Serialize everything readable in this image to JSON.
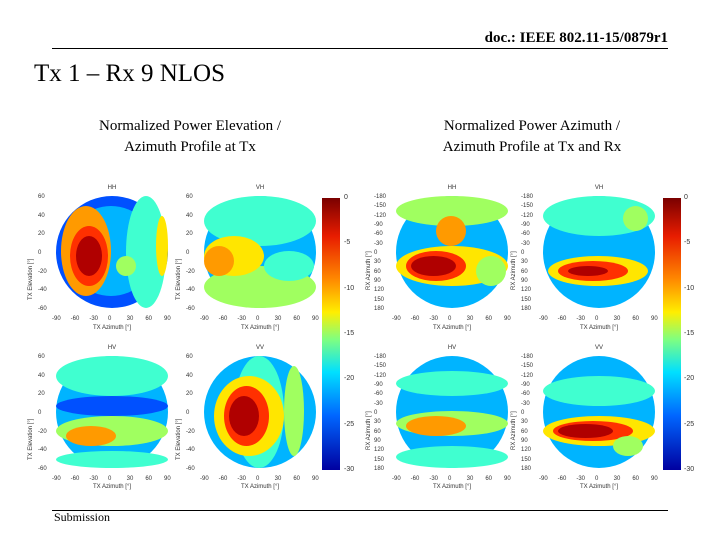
{
  "header": {
    "doc_id": "doc.: IEEE 802.11-15/0879r1"
  },
  "slide_title": "Tx 1 – Rx 9 NLOS",
  "left_subtitle_line1": "Normalized Power Elevation /",
  "left_subtitle_line2": "Azimuth Profile at Tx",
  "right_subtitle_line1": "Normalized Power Azimuth /",
  "right_subtitle_line2": "Azimuth Profile at Tx and Rx",
  "footer": "Submission",
  "left_panels": [
    {
      "title": "HH",
      "xlabel": "TX Azimuth [°]",
      "ylabel": "TX Elevation [°]"
    },
    {
      "title": "VH",
      "xlabel": "TX Azimuth [°]",
      "ylabel": "TX Elevation [°]"
    },
    {
      "title": "HV",
      "xlabel": "TX Azimuth [°]",
      "ylabel": "TX Elevation [°]"
    },
    {
      "title": "VV",
      "xlabel": "TX Azimuth [°]",
      "ylabel": "TX Elevation [°]"
    }
  ],
  "right_panels": [
    {
      "title": "HH",
      "xlabel": "TX Azimuth [°]",
      "ylabel": "RX Azimuth [°]"
    },
    {
      "title": "VH",
      "xlabel": "TX Azimuth [°]",
      "ylabel": "RX Azimuth [°]"
    },
    {
      "title": "HV",
      "xlabel": "TX Azimuth [°]",
      "ylabel": "RX Azimuth [°]"
    },
    {
      "title": "VV",
      "xlabel": "TX Azimuth [°]",
      "ylabel": "RX Azimuth [°]"
    }
  ],
  "colorbar_ticks": [
    "0",
    "-5",
    "-10",
    "-15",
    "-20",
    "-25",
    "-30"
  ],
  "left_yticks": [
    "60",
    "40",
    "20",
    "0",
    "-20",
    "-40",
    "-60"
  ],
  "right_yticks": [
    "-180",
    "-150",
    "-120",
    "-90",
    "-60",
    "-30",
    "0",
    "30",
    "60",
    "90",
    "120",
    "150",
    "180"
  ],
  "xticks": [
    "-90",
    "-60",
    "-30",
    "0",
    "30",
    "60",
    "90"
  ]
}
